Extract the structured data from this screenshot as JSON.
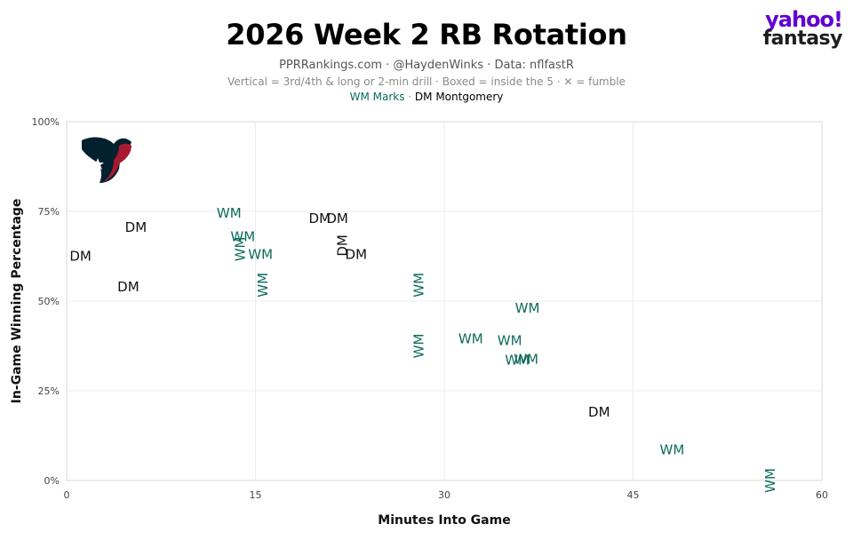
{
  "header": {
    "title": "2026 Week 2 RB Rotation",
    "subtitle": "PPRRankings.com · @HaydenWinks · Data: nflfastR",
    "note": "Vertical = 3rd/4th & long or 2-min drill · Boxed = inside the 5 · ✕ = fumble",
    "legend_wm": "WM Marks",
    "legend_sep": " · ",
    "legend_dm": "DM Montgomery"
  },
  "brand": {
    "line1": "yahoo!",
    "line2": "fantasy",
    "color": "#6001d2"
  },
  "team_logo": {
    "icon": "texans-logo-icon",
    "navy": "#03202f",
    "red": "#a71930"
  },
  "chart_data": {
    "type": "scatter",
    "xlabel": "Minutes Into Game",
    "ylabel": "In-Game Winning Percentage",
    "xlim": [
      0,
      60
    ],
    "ylim": [
      0,
      100
    ],
    "xticks": [
      0,
      15,
      30,
      45,
      60
    ],
    "yticks": [
      0,
      25,
      50,
      75,
      100
    ],
    "xtick_labels": [
      "0",
      "15",
      "30",
      "45",
      "60"
    ],
    "ytick_labels": [
      "0%",
      "25%",
      "50%",
      "75%",
      "100%"
    ],
    "grid": true,
    "series": [
      {
        "name": "WM Marks",
        "label": "WM",
        "color": "#0e6b5c",
        "points": [
          {
            "x": 12.9,
            "y": 74.5,
            "vertical": false
          },
          {
            "x": 14.0,
            "y": 68.0,
            "vertical": false
          },
          {
            "x": 13.8,
            "y": 64.5,
            "vertical": true
          },
          {
            "x": 15.4,
            "y": 63.0,
            "vertical": false
          },
          {
            "x": 15.6,
            "y": 54.5,
            "vertical": true
          },
          {
            "x": 28.0,
            "y": 54.5,
            "vertical": true
          },
          {
            "x": 28.0,
            "y": 37.5,
            "vertical": true
          },
          {
            "x": 32.1,
            "y": 39.5,
            "vertical": false
          },
          {
            "x": 35.2,
            "y": 39.0,
            "vertical": false
          },
          {
            "x": 36.6,
            "y": 48.0,
            "vertical": false
          },
          {
            "x": 35.8,
            "y": 33.5,
            "vertical": false
          },
          {
            "x": 36.5,
            "y": 33.8,
            "vertical": false
          },
          {
            "x": 48.1,
            "y": 8.5,
            "vertical": false
          },
          {
            "x": 55.9,
            "y": 0.0,
            "vertical": true
          }
        ]
      },
      {
        "name": "DM Montgomery",
        "label": "DM",
        "color": "#111111",
        "points": [
          {
            "x": 1.1,
            "y": 62.5,
            "vertical": false
          },
          {
            "x": 5.5,
            "y": 70.5,
            "vertical": false
          },
          {
            "x": 4.9,
            "y": 54.0,
            "vertical": false
          },
          {
            "x": 20.1,
            "y": 73.0,
            "vertical": false
          },
          {
            "x": 21.5,
            "y": 73.0,
            "vertical": false
          },
          {
            "x": 21.9,
            "y": 65.5,
            "vertical": true
          },
          {
            "x": 23.0,
            "y": 63.0,
            "vertical": false
          },
          {
            "x": 42.3,
            "y": 19.0,
            "vertical": false
          }
        ]
      }
    ]
  }
}
